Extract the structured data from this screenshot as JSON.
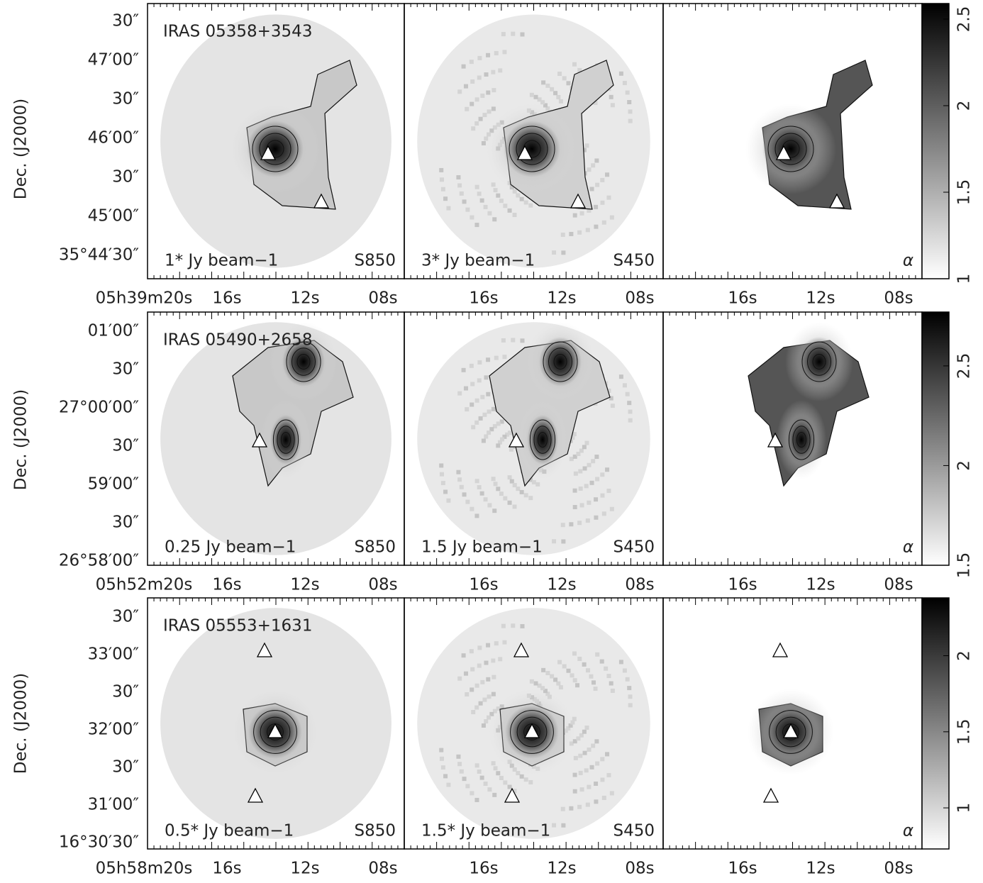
{
  "y_axis_label": "Dec. (J2000)",
  "rows": [
    {
      "source": "IRAS 05358+3543",
      "yticks": [
        "30″",
        "47′00″",
        "30″",
        "46′00″",
        "30″",
        "45′00″",
        "35°44′30″"
      ],
      "xticks": [
        "05h39m20s",
        "16s",
        "12s",
        "08s"
      ],
      "panels": [
        {
          "contour_label": "1* Jy beam−1",
          "map_label": "S850"
        },
        {
          "contour_label": "3* Jy beam−1",
          "map_label": "S450"
        },
        {
          "map_label": "α"
        }
      ],
      "colorbar": {
        "lim": [
          1,
          2.59
        ],
        "ticks": [
          1,
          1.5,
          2,
          2.5
        ]
      }
    },
    {
      "source": "IRAS 05490+2658",
      "yticks": [
        "01′00″",
        "30″",
        "27°00′00″",
        "30″",
        "59′00″",
        "30″",
        "26°58′00″"
      ],
      "xticks": [
        "05h52m20s",
        "16s",
        "12s",
        "08s"
      ],
      "panels": [
        {
          "contour_label": "0.25 Jy beam−1",
          "map_label": "S850"
        },
        {
          "contour_label": "1.5 Jy beam−1",
          "map_label": "S450"
        },
        {
          "map_label": "α"
        }
      ],
      "colorbar": {
        "lim": [
          1.5,
          2.77
        ],
        "ticks": [
          1.5,
          2,
          2.5
        ]
      }
    },
    {
      "source": "IRAS 05553+1631",
      "yticks": [
        "30″",
        "33′00″",
        "30″",
        "32′00″",
        "30″",
        "31′00″",
        "16°30′30″"
      ],
      "xticks": [
        "05h58m20s",
        "16s",
        "12s",
        "08s"
      ],
      "panels": [
        {
          "contour_label": "0.5* Jy beam−1",
          "map_label": "S850"
        },
        {
          "contour_label": "1.5* Jy beam−1",
          "map_label": "S450"
        },
        {
          "map_label": "α"
        }
      ],
      "colorbar": {
        "lim": [
          0.73,
          2.38
        ],
        "ticks": [
          1,
          1.5,
          2
        ]
      }
    }
  ]
}
